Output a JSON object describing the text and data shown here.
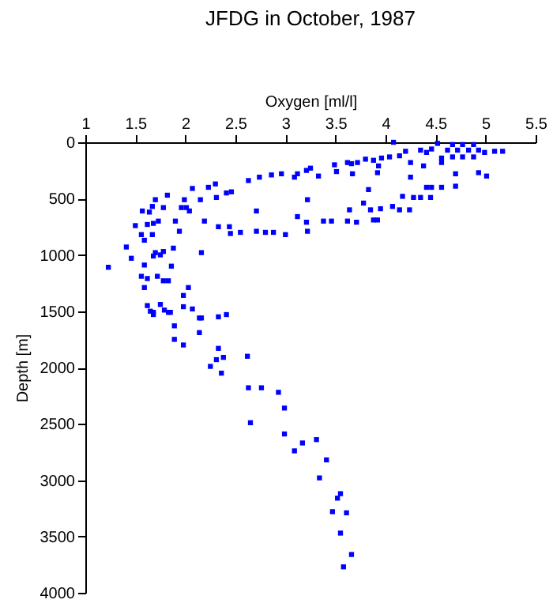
{
  "chart_data": {
    "type": "scatter",
    "title": "JFDG in October, 1987",
    "xlabel": "Oxygen [ml/l]",
    "ylabel": "Depth [m]",
    "xlim": [
      1,
      5.5
    ],
    "xticks": [
      1,
      1.5,
      2,
      2.5,
      3,
      3.5,
      4,
      4.5,
      5,
      5.5
    ],
    "ylim": [
      4000,
      0
    ],
    "yticks": [
      0,
      500,
      1000,
      1500,
      2000,
      2500,
      3000,
      3500,
      4000
    ],
    "grid": false,
    "marker": "square",
    "series": [
      {
        "color": "#0000ff",
        "x": [
          4.08,
          4.52,
          4.67,
          4.77,
          4.88,
          4.62,
          4.72,
          4.83,
          4.93,
          5.09,
          5.17,
          4.99,
          4.67,
          4.77,
          4.88,
          4.56,
          4.46,
          4.41,
          4.35,
          4.2,
          4.14,
          4.04,
          3.96,
          3.88,
          3.8,
          3.72,
          3.62,
          3.49,
          3.93,
          3.92,
          4.25,
          4.38,
          4.25,
          4.56,
          4.7,
          4.93,
          5.01,
          3.25,
          3.21,
          3.12,
          3.33,
          3.51,
          3.67,
          3.66,
          3.09,
          2.96,
          2.86,
          2.74,
          2.63,
          2.3,
          2.23,
          2.46,
          2.41,
          2.31,
          2.15,
          2.07,
          1.82,
          1.7,
          1.67,
          1.78,
          1.99,
          1.96,
          2.01,
          2.04,
          1.57,
          1.64,
          1.73,
          1.9,
          2.19,
          1.5,
          1.62,
          1.68,
          1.56,
          1.67,
          1.59,
          1.94,
          2.33,
          2.44,
          2.45,
          2.55,
          2.71,
          2.8,
          2.88,
          3.0,
          3.22,
          3.12,
          3.21,
          3.38,
          3.46,
          3.62,
          3.71,
          3.88,
          3.92,
          2.71,
          3.22,
          3.64,
          3.78,
          3.85,
          3.95,
          4.07,
          4.14,
          4.24,
          4.17,
          4.28,
          4.35,
          4.45,
          4.41,
          4.46,
          4.56,
          4.7,
          3.83,
          1.41,
          1.46,
          1.7,
          1.75,
          1.78,
          1.88,
          1.86,
          2.16,
          1.68,
          1.23,
          1.59,
          1.56,
          1.62,
          1.72,
          1.78,
          1.83,
          1.59,
          2.03,
          1.98,
          1.62,
          1.65,
          1.68,
          1.68,
          1.75,
          1.79,
          1.83,
          1.85,
          1.98,
          2.07,
          2.14,
          2.16,
          2.33,
          2.41,
          1.89,
          1.89,
          1.98,
          2.14,
          2.33,
          2.31,
          2.38,
          2.25,
          2.36,
          2.62,
          2.63,
          2.76,
          2.93,
          2.99,
          2.65,
          2.99,
          3.17,
          3.09,
          3.31,
          3.41,
          3.34,
          3.55,
          3.52,
          3.47,
          3.61,
          3.55,
          3.66,
          3.58
        ],
        "values": [
          0,
          10,
          20,
          20,
          20,
          70,
          70,
          70,
          70,
          80,
          80,
          90,
          130,
          130,
          130,
          140,
          60,
          90,
          70,
          80,
          120,
          130,
          140,
          160,
          150,
          180,
          180,
          200,
          210,
          270,
          180,
          210,
          310,
          180,
          280,
          270,
          300,
          230,
          250,
          280,
          300,
          260,
          280,
          190,
          310,
          280,
          290,
          310,
          340,
          370,
          400,
          440,
          450,
          490,
          510,
          410,
          470,
          510,
          570,
          580,
          510,
          580,
          580,
          610,
          610,
          620,
          700,
          700,
          700,
          740,
          730,
          720,
          820,
          820,
          870,
          790,
          750,
          750,
          810,
          800,
          790,
          800,
          800,
          820,
          790,
          660,
          710,
          700,
          700,
          700,
          710,
          690,
          690,
          610,
          510,
          600,
          540,
          600,
          590,
          570,
          600,
          600,
          480,
          490,
          490,
          490,
          400,
          400,
          400,
          390,
          420,
          930,
          1030,
          980,
          1000,
          970,
          940,
          1100,
          980,
          1010,
          1110,
          1090,
          1190,
          1210,
          1190,
          1230,
          1230,
          1290,
          1290,
          1360,
          1450,
          1500,
          1510,
          1530,
          1440,
          1490,
          1510,
          1510,
          1460,
          1480,
          1560,
          1560,
          1550,
          1530,
          1630,
          1750,
          1800,
          1690,
          1830,
          1930,
          1910,
          1990,
          2050,
          1900,
          2180,
          2180,
          2220,
          2360,
          2490,
          2590,
          2670,
          2740,
          2640,
          2820,
          2980,
          3120,
          3160,
          3280,
          3290,
          3470,
          3660,
          3770
        ]
      }
    ]
  }
}
